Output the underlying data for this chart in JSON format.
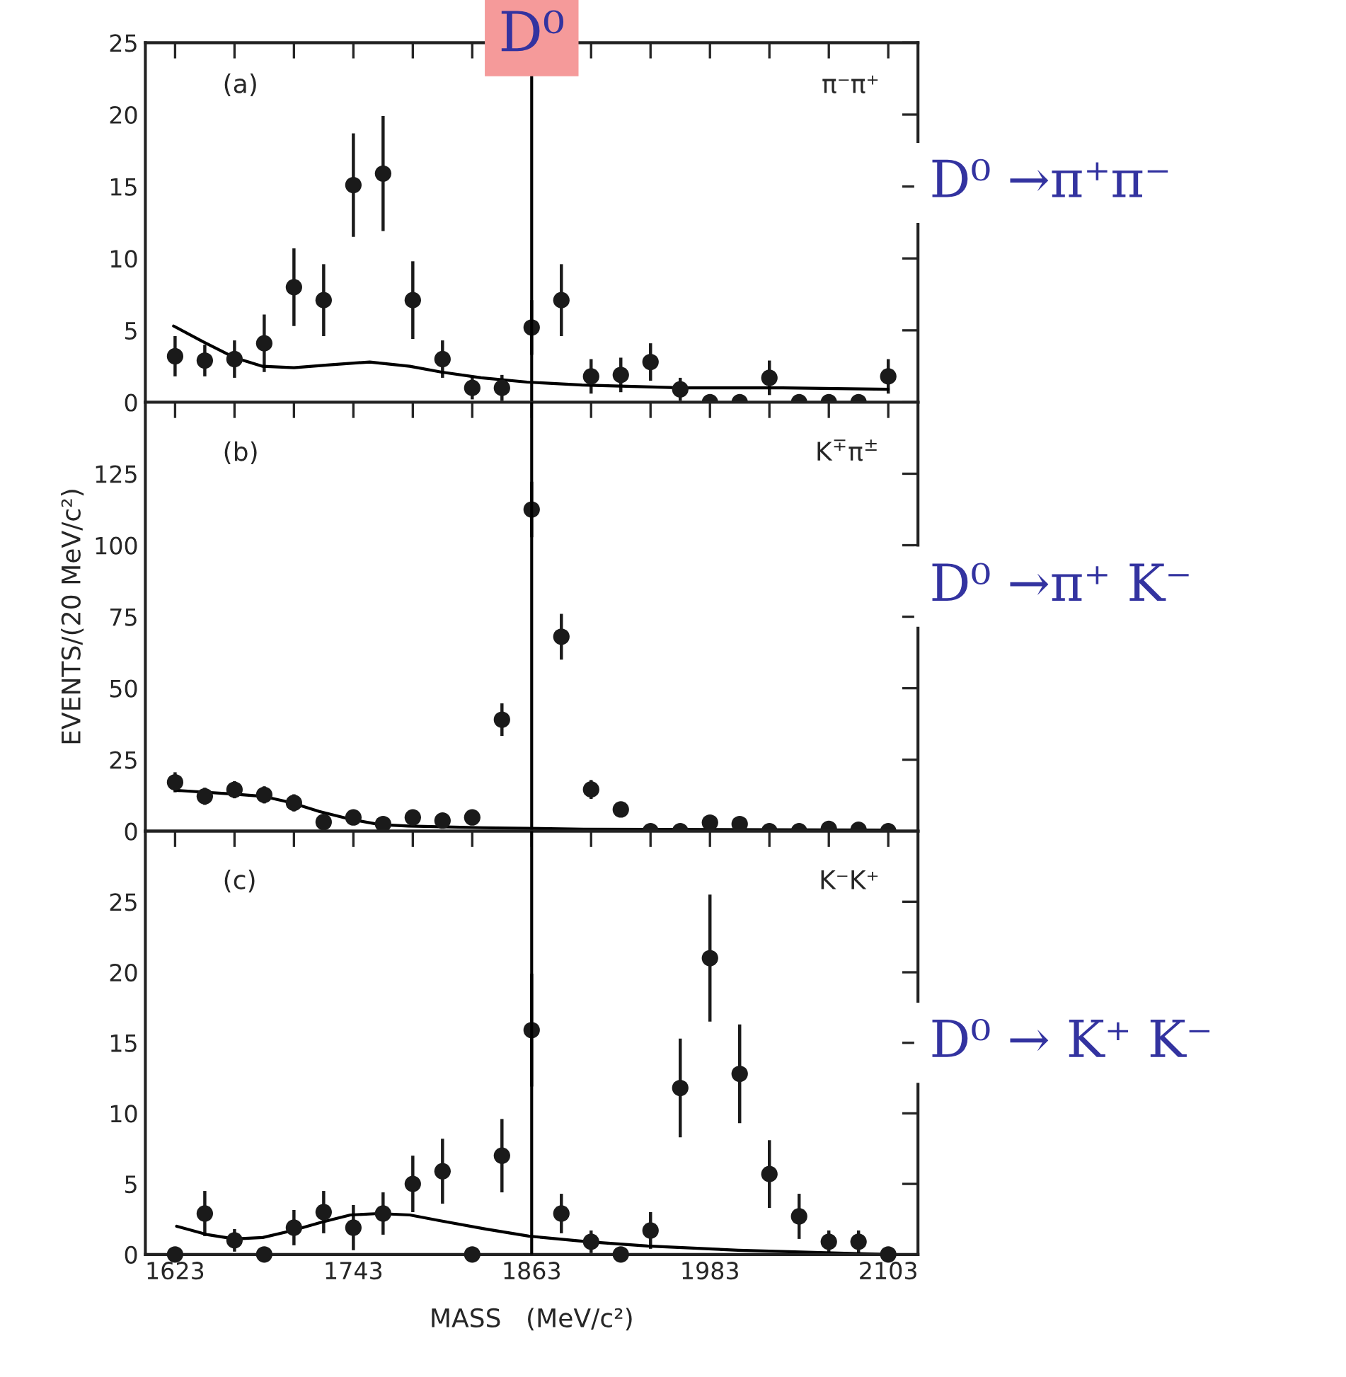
{
  "chart_data": [
    {
      "type": "scatter",
      "annotations": [
        "(a)",
        "π⁻π⁺",
        "D⁰ →π⁺π⁻"
      ],
      "x": [
        1623,
        1643,
        1663,
        1683,
        1703,
        1723,
        1743,
        1763,
        1783,
        1803,
        1823,
        1843,
        1863,
        1883,
        1903,
        1923,
        1943,
        1963,
        1983,
        2003,
        2023,
        2043,
        2063,
        2083,
        2103
      ],
      "series": [
        {
          "marker": "circle",
          "color": "#1a1a1a",
          "values": [
            3.2,
            2.9,
            3.0,
            4.1,
            8.0,
            7.1,
            15.1,
            15.9,
            7.1,
            3.0,
            1.0,
            1.0,
            5.2,
            7.1,
            1.8,
            1.9,
            2.8,
            0.9,
            0,
            0,
            1.7,
            0,
            0,
            0,
            1.8
          ],
          "errors": [
            1.4,
            1.1,
            1.3,
            2.0,
            2.7,
            2.5,
            3.6,
            4.0,
            2.7,
            1.3,
            0.8,
            0.9,
            1.9,
            2.5,
            1.2,
            1.2,
            1.3,
            0.8,
            null,
            null,
            1.2,
            null,
            null,
            null,
            1.2
          ]
        },
        {
          "type": "line",
          "color": "#000000",
          "x": [
            1622,
            1642,
            1663,
            1682,
            1703,
            1727,
            1754,
            1781,
            1802,
            1829,
            1860,
            1897,
            1965,
            2032,
            2103
          ],
          "values": [
            5.3,
            4.2,
            3.1,
            2.5,
            2.4,
            2.6,
            2.8,
            2.5,
            2.1,
            1.7,
            1.4,
            1.2,
            1.0,
            1.0,
            0.9
          ]
        }
      ],
      "xlim": [
        1603,
        2123
      ],
      "ylim": [
        0,
        25
      ],
      "yticks": [
        0,
        5,
        10,
        15,
        20,
        25
      ],
      "xticks": [
        1623,
        {
          "value": 1663,
          "label": null
        },
        {
          "value": 1703,
          "label": null
        },
        1743,
        {
          "value": 1783,
          "label": null
        },
        {
          "value": 1823,
          "label": null
        },
        1863,
        {
          "value": 1903,
          "label": null
        },
        {
          "value": 1943,
          "label": null
        },
        1983,
        {
          "value": 2023,
          "label": null
        },
        {
          "value": 2063,
          "label": null
        },
        2103
      ],
      "tick_labels": "y",
      "line_style": "solid",
      "ref_lines": [
        {
          "axis": "x",
          "value": 1863,
          "label": "D⁰",
          "color": "#000000"
        }
      ]
    },
    {
      "type": "scatter",
      "ylabel": "EVENTS/(20 MeV/c²)",
      "annotations": [
        "(b)",
        "K$^{∓}$π$^{±}$",
        "D⁰ →π⁺ K⁻"
      ],
      "x": [
        1623,
        1643,
        1663,
        1683,
        1703,
        1723,
        1743,
        1763,
        1783,
        1803,
        1823,
        1843,
        1863,
        1883,
        1903,
        1923,
        1943,
        1963,
        1983,
        2003,
        2023,
        2043,
        2063,
        2083,
        2103
      ],
      "series": [
        {
          "marker": "circle",
          "color": "#1a1a1a",
          "values": [
            17.1,
            12.2,
            14.5,
            12.7,
            9.9,
            3.2,
            4.8,
            2.5,
            4.8,
            3.7,
            4.8,
            39,
            112.5,
            68,
            14.6,
            7.6,
            0,
            0,
            3,
            2.5,
            0,
            0,
            0.8,
            0.5,
            0
          ],
          "errors": [
            3.5,
            3,
            3,
            3,
            3,
            null,
            null,
            null,
            null,
            null,
            null,
            5.7,
            9.7,
            8,
            3.3,
            null,
            null,
            null,
            null,
            null,
            null,
            null,
            null,
            null,
            null
          ]
        },
        {
          "type": "line",
          "color": "#000000",
          "x": [
            1623,
            1662,
            1682,
            1701,
            1720,
            1741,
            1761,
            1780,
            1830,
            1898,
            2103
          ],
          "values": [
            14.3,
            13,
            12.2,
            10,
            6.9,
            4.2,
            2.3,
            1.8,
            1.2,
            0.7,
            0.4
          ]
        }
      ],
      "xlim": [
        1603,
        2123
      ],
      "ylim": [
        0,
        150
      ],
      "yticks": [
        0,
        25,
        50,
        75,
        100,
        125
      ],
      "xticks": [
        1623,
        {
          "value": 1663,
          "label": null
        },
        {
          "value": 1703,
          "label": null
        },
        1743,
        {
          "value": 1783,
          "label": null
        },
        {
          "value": 1823,
          "label": null
        },
        1863,
        {
          "value": 1903,
          "label": null
        },
        {
          "value": 1943,
          "label": null
        },
        1983,
        {
          "value": 2023,
          "label": null
        },
        {
          "value": 2063,
          "label": null
        },
        2103
      ],
      "tick_labels": "y",
      "line_style": "solid",
      "ref_lines": [
        {
          "axis": "x",
          "value": 1863,
          "color": "#000000"
        }
      ]
    },
    {
      "type": "scatter",
      "xlabel": "MASS   (MeV/c²)",
      "annotations": [
        "(c)",
        "K⁻K⁺",
        "D⁰ → K⁺ K⁻"
      ],
      "x": [
        1623,
        1643,
        1663,
        1683,
        1703,
        1723,
        1743,
        1763,
        1783,
        1803,
        1823,
        1843,
        1863,
        1883,
        1903,
        1923,
        1943,
        1963,
        1983,
        2003,
        2023,
        2043,
        2063,
        2083,
        2103
      ],
      "series": [
        {
          "marker": "circle",
          "color": "#1a1a1a",
          "values": [
            0,
            2.9,
            1.0,
            0,
            1.9,
            3.0,
            1.9,
            2.9,
            5.0,
            5.9,
            0,
            7.0,
            15.9,
            2.9,
            0.9,
            0,
            1.7,
            11.8,
            21,
            12.8,
            5.7,
            2.7,
            0.9,
            0.9,
            0
          ],
          "errors": [
            null,
            1.6,
            0.8,
            null,
            1.25,
            1.5,
            1.6,
            1.5,
            2,
            2.3,
            null,
            2.6,
            4,
            1.4,
            0.8,
            null,
            1.3,
            3.5,
            4.5,
            3.5,
            2.4,
            1.6,
            0.8,
            0.8,
            null
          ]
        },
        {
          "type": "line",
          "color": "#000000",
          "x": [
            1624,
            1645,
            1663,
            1682,
            1702,
            1722,
            1741,
            1760,
            1781,
            1801,
            1832,
            1861,
            1901,
            1941,
            2002,
            2103
          ],
          "values": [
            2.0,
            1.4,
            1.1,
            1.2,
            1.7,
            2.3,
            2.8,
            2.9,
            2.8,
            2.4,
            1.8,
            1.3,
            0.9,
            0.6,
            0.3,
            0
          ]
        }
      ],
      "xlim": [
        1603,
        2123
      ],
      "ylim": [
        0,
        30
      ],
      "yticks": [
        0,
        5,
        10,
        15,
        20,
        25
      ],
      "xticks": [
        1623,
        {
          "value": 1663,
          "label": null
        },
        {
          "value": 1703,
          "label": null
        },
        1743,
        {
          "value": 1783,
          "label": null
        },
        {
          "value": 1823,
          "label": null
        },
        1863,
        {
          "value": 1903,
          "label": null
        },
        {
          "value": 1943,
          "label": null
        },
        1983,
        {
          "value": 2023,
          "label": null
        },
        {
          "value": 2063,
          "label": null
        },
        2103
      ],
      "line_style": "solid",
      "ref_lines": [
        {
          "axis": "x",
          "value": 1863,
          "color": "#000000"
        }
      ]
    }
  ]
}
